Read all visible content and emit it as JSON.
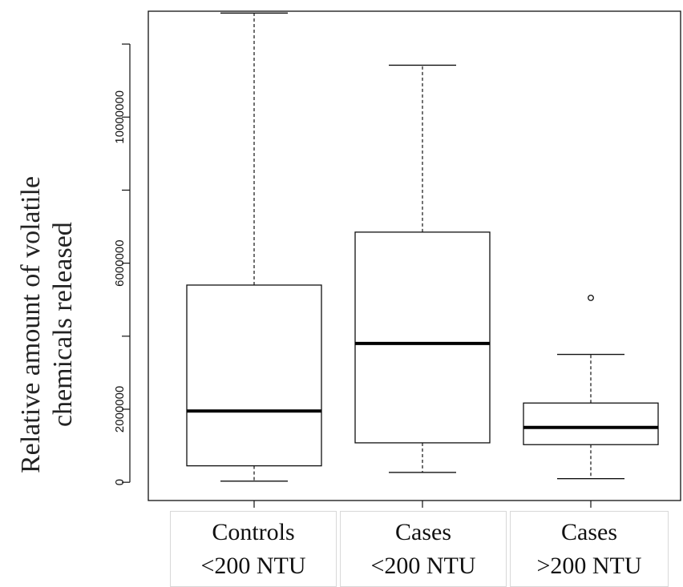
{
  "chart_data": {
    "type": "boxplot",
    "title": "",
    "ylabel_lines": [
      "Relative amount of volatile",
      "chemicals released"
    ],
    "xlabel": "",
    "ylim": [
      -500000,
      12900000
    ],
    "yticks": [
      0,
      2000000,
      6000000,
      10000000
    ],
    "ytick_labels": [
      "0",
      "2000000",
      "6000000",
      "10000000"
    ],
    "grid": false,
    "categories": [
      {
        "lines": [
          "Controls",
          "<200 NTU"
        ]
      },
      {
        "lines": [
          "Cases",
          "<200 NTU"
        ]
      },
      {
        "lines": [
          "Cases",
          ">200 NTU"
        ]
      }
    ],
    "boxes": [
      {
        "whisker_low": 30000,
        "q1": 450000,
        "median": 1950000,
        "q3": 5400000,
        "whisker_high": 12850000,
        "outliers": []
      },
      {
        "whisker_low": 270000,
        "q1": 1080000,
        "median": 3800000,
        "q3": 6850000,
        "whisker_high": 11420000,
        "outliers": []
      },
      {
        "whisker_low": 100000,
        "q1": 1030000,
        "median": 1500000,
        "q3": 2170000,
        "whisker_high": 3500000,
        "outliers": [
          5050000
        ]
      }
    ]
  }
}
